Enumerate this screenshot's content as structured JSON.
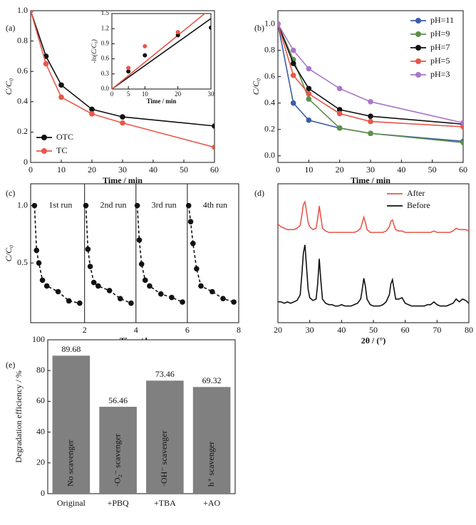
{
  "chart_data": [
    {
      "type": "line",
      "panel": "(a)",
      "xlabel": "Time / min",
      "ylabel": "C/C₀",
      "markers": true,
      "legend": "lower left",
      "x": [
        0,
        5,
        10,
        20,
        30,
        60
      ],
      "series": [
        {
          "name": "OTC",
          "color": "#111111",
          "values": [
            1.0,
            0.7,
            0.51,
            0.35,
            0.3,
            0.24
          ]
        },
        {
          "name": "TC",
          "color": "#e8574a",
          "values": [
            1.0,
            0.65,
            0.43,
            0.32,
            0.26,
            0.1
          ]
        }
      ],
      "xlim": [
        0,
        60
      ],
      "xticks": [
        0,
        10,
        20,
        30,
        40,
        50,
        60
      ],
      "ylim": [
        0,
        1.0
      ],
      "yticks": [
        0,
        0.2,
        0.4,
        0.6,
        0.8,
        {
          "value": 1.0,
          "label": "1.0"
        }
      ]
    },
    {
      "type": "scatter",
      "inset": true,
      "xlabel": "Time / min",
      "ylabel": "-ln(C/C₀)",
      "x": [
        5,
        10,
        20,
        30
      ],
      "series": [
        {
          "color": "#111111",
          "values": [
            0.35,
            0.67,
            1.07,
            1.22
          ]
        },
        {
          "color": "#e8574a",
          "values": [
            0.42,
            0.85,
            1.13,
            null
          ]
        }
      ],
      "fits": [
        {
          "color": "#111111",
          "x": [
            0,
            30
          ],
          "values": [
            0,
            1.4
          ]
        },
        {
          "color": "#e8574a",
          "x": [
            0,
            30
          ],
          "values": [
            0,
            1.6
          ]
        }
      ],
      "xlim": [
        0,
        30
      ],
      "xticks": [
        0,
        5,
        10,
        20,
        30
      ],
      "ylim": [
        0,
        1.5
      ],
      "yticks": [
        {
          "value": 0,
          "label": "0.0"
        },
        0.3,
        0.6,
        0.9,
        1.2,
        1.5
      ]
    },
    {
      "type": "line",
      "panel": "(b)",
      "xlabel": "Time / min",
      "ylabel": "C/C₀",
      "markers": true,
      "legend": "upper right",
      "x": [
        0,
        5,
        10,
        20,
        30,
        60
      ],
      "series": [
        {
          "name": "pH=11",
          "color": "#3b5ca6",
          "values": [
            1.0,
            0.4,
            0.27,
            0.21,
            0.17,
            0.11
          ]
        },
        {
          "name": "pH=9",
          "color": "#5e8f4b",
          "values": [
            1.0,
            0.73,
            0.43,
            0.21,
            0.17,
            0.1
          ]
        },
        {
          "name": "pH=7",
          "color": "#111111",
          "values": [
            1.0,
            0.7,
            0.51,
            0.35,
            0.3,
            0.24
          ]
        },
        {
          "name": "pH=5",
          "color": "#e8574a",
          "values": [
            1.0,
            0.61,
            0.47,
            0.32,
            0.26,
            0.22
          ]
        },
        {
          "name": "pH=3",
          "color": "#a878c8",
          "values": [
            1.0,
            0.8,
            0.66,
            0.51,
            0.41,
            0.25
          ]
        }
      ],
      "xlim": [
        0,
        60
      ],
      "xticks": [
        0,
        10,
        20,
        30,
        40,
        50,
        60
      ],
      "ylim": [
        -0.05,
        1.1
      ],
      "yticks": [
        {
          "value": 0,
          "label": "0.0"
        },
        0.2,
        0.4,
        0.6,
        0.8,
        {
          "value": 1.0,
          "label": "1.0"
        }
      ]
    },
    {
      "type": "line",
      "panel": "(c)",
      "xlabel": "Time / h",
      "ylabel": "C/C₀",
      "markers": true,
      "line_style": "dashed",
      "separators": true,
      "annotations": [
        "1st run",
        "2nd run",
        "3rd run",
        "4th run"
      ],
      "series": [
        {
          "color": "#111111",
          "x": [
            0.05,
            0.13,
            0.22,
            0.36,
            0.53,
            0.97,
            1.39,
            1.81
          ],
          "values": [
            1.0,
            0.61,
            0.5,
            0.35,
            0.3,
            0.25,
            0.17,
            0.15
          ]
        },
        {
          "color": "#111111",
          "x": [
            2.05,
            2.13,
            2.22,
            2.36,
            2.53,
            2.97,
            3.39,
            3.81
          ],
          "values": [
            1.0,
            0.62,
            0.47,
            0.33,
            0.3,
            0.26,
            0.19,
            0.15
          ]
        },
        {
          "color": "#111111",
          "x": [
            4.05,
            4.13,
            4.22,
            4.36,
            4.53,
            4.97,
            5.39,
            5.81
          ],
          "values": [
            1.0,
            0.7,
            0.49,
            0.35,
            0.3,
            0.23,
            0.2,
            0.16
          ]
        },
        {
          "color": "#111111",
          "x": [
            6.05,
            6.13,
            6.22,
            6.36,
            6.53,
            6.97,
            7.39,
            7.81
          ],
          "values": [
            1.0,
            0.86,
            0.67,
            0.45,
            0.3,
            0.25,
            0.19,
            0.16
          ]
        }
      ],
      "xlim": [
        -0.1,
        8
      ],
      "xticks": [
        2,
        4,
        6,
        8
      ],
      "ylim": [
        -0.02,
        1.19
      ],
      "yticks": [
        0.5,
        {
          "value": 1.0,
          "label": "1.0"
        }
      ]
    },
    {
      "type": "line",
      "panel": "(d)",
      "xlabel": "2θ / (°)",
      "markers": false,
      "legend": "upper right",
      "x": [
        20,
        21,
        22,
        23,
        24,
        25,
        26,
        27,
        27.5,
        28,
        28.5,
        29,
        29.5,
        30,
        31,
        32,
        32.5,
        33,
        33.5,
        34,
        35,
        36,
        37,
        38,
        39,
        40,
        41,
        42,
        43,
        44,
        45,
        46,
        46.5,
        47,
        47.5,
        48,
        49,
        50,
        51,
        52,
        53,
        54,
        55,
        55.5,
        56,
        56.5,
        57,
        58,
        59,
        60,
        61,
        62,
        63,
        64,
        65,
        66,
        67,
        68,
        69,
        70,
        71,
        72,
        73,
        74,
        75,
        76,
        77,
        78,
        79,
        80
      ],
      "series": [
        {
          "name": "After",
          "color": "#e8574a",
          "values": [
            0.71,
            0.69,
            0.68,
            0.67,
            0.67,
            0.67,
            0.68,
            0.7,
            0.77,
            0.85,
            0.87,
            0.8,
            0.72,
            0.69,
            0.67,
            0.68,
            0.75,
            0.84,
            0.76,
            0.68,
            0.66,
            0.65,
            0.65,
            0.65,
            0.65,
            0.65,
            0.65,
            0.65,
            0.65,
            0.65,
            0.66,
            0.68,
            0.72,
            0.76,
            0.72,
            0.67,
            0.65,
            0.65,
            0.65,
            0.65,
            0.65,
            0.66,
            0.69,
            0.73,
            0.74,
            0.7,
            0.67,
            0.66,
            0.66,
            0.65,
            0.65,
            0.65,
            0.65,
            0.65,
            0.65,
            0.65,
            0.65,
            0.65,
            0.66,
            0.65,
            0.65,
            0.65,
            0.65,
            0.65,
            0.66,
            0.68,
            0.67,
            0.67,
            0.67,
            0.66
          ]
        },
        {
          "name": "Before",
          "color": "#111111",
          "values": [
            0.15,
            0.15,
            0.14,
            0.15,
            0.14,
            0.15,
            0.16,
            0.2,
            0.34,
            0.5,
            0.56,
            0.4,
            0.24,
            0.18,
            0.16,
            0.17,
            0.28,
            0.46,
            0.3,
            0.17,
            0.14,
            0.13,
            0.13,
            0.12,
            0.12,
            0.13,
            0.12,
            0.12,
            0.12,
            0.13,
            0.14,
            0.17,
            0.24,
            0.32,
            0.26,
            0.17,
            0.13,
            0.12,
            0.12,
            0.12,
            0.13,
            0.15,
            0.2,
            0.28,
            0.31,
            0.24,
            0.17,
            0.17,
            0.18,
            0.14,
            0.13,
            0.12,
            0.12,
            0.12,
            0.12,
            0.12,
            0.13,
            0.13,
            0.15,
            0.13,
            0.12,
            0.12,
            0.12,
            0.13,
            0.14,
            0.17,
            0.15,
            0.17,
            0.16,
            0.14
          ]
        }
      ],
      "xlim": [
        20,
        80
      ],
      "xticks": [
        20,
        30,
        40,
        50,
        60,
        70,
        80
      ],
      "ylim": [
        0,
        1
      ],
      "yticks": []
    },
    {
      "type": "bar",
      "panel": "(e)",
      "ylabel": "Degradation efficiency / %",
      "color": "#808080",
      "categories": [
        "Original",
        "+PBQ",
        "+TBA",
        "+AO"
      ],
      "values": [
        89.68,
        56.46,
        73.46,
        69.32
      ],
      "annotations": [
        "No scavenger",
        "·O₂⁻ scavenger",
        "·OH⁻ scavenger",
        "h⁺ scavenger"
      ],
      "ylim": [
        0,
        100
      ],
      "yticks": [
        0,
        20,
        40,
        60,
        80,
        100
      ]
    }
  ]
}
